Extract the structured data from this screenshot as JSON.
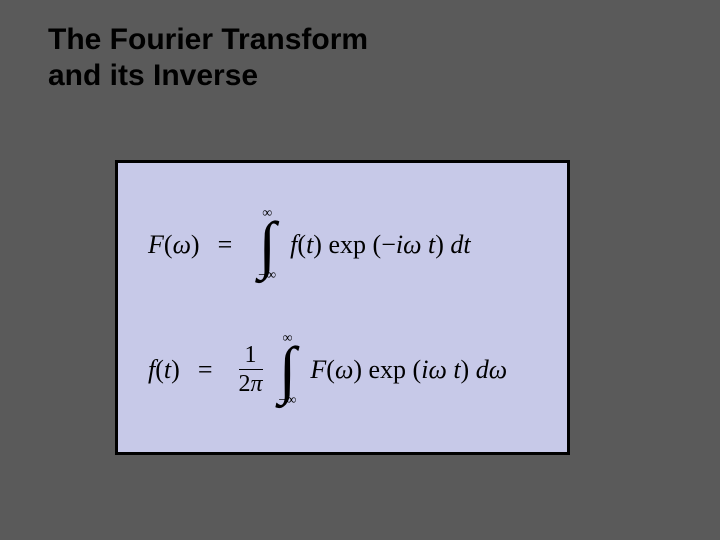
{
  "slide": {
    "background_color": "#5a5a5a",
    "title_color": "#000000",
    "title_line1": "The Fourier Transform",
    "title_line2": "and its Inverse",
    "title_fontsize": 30,
    "title_fontweight": "bold",
    "formula_box": {
      "background_color": "#c7c9e8",
      "border_color": "#000000",
      "border_width": 3
    },
    "equations": {
      "upper_limit": "∞",
      "lower_limit": "−∞",
      "eq1": {
        "lhs_F": "F",
        "lhs_open": "(",
        "lhs_omega": "ω",
        "lhs_close": ")",
        "eq": "=",
        "integrand_f": "f",
        "integrand_open": "(",
        "integrand_t": "t",
        "integrand_close": ")",
        "space": " ",
        "exp": "exp",
        "exp_open": "(",
        "exp_neg": "−",
        "exp_i": "i",
        "exp_omega": "ω",
        "exp_t": "t",
        "exp_close": ")",
        "d": "d",
        "dvar": "t"
      },
      "eq2": {
        "lhs_f": "f",
        "lhs_open": "(",
        "lhs_t": "t",
        "lhs_close": ")",
        "eq": "=",
        "frac_num": "1",
        "frac_den_2": "2",
        "frac_den_pi": "π",
        "integrand_F": "F",
        "integrand_open": "(",
        "integrand_omega": "ω",
        "integrand_close": ")",
        "space": " ",
        "exp": "exp",
        "exp_open": "(",
        "exp_i": "i",
        "exp_omega": "ω",
        "exp_t": "t",
        "exp_close": ")",
        "d": "d",
        "dvar": "ω"
      }
    }
  }
}
